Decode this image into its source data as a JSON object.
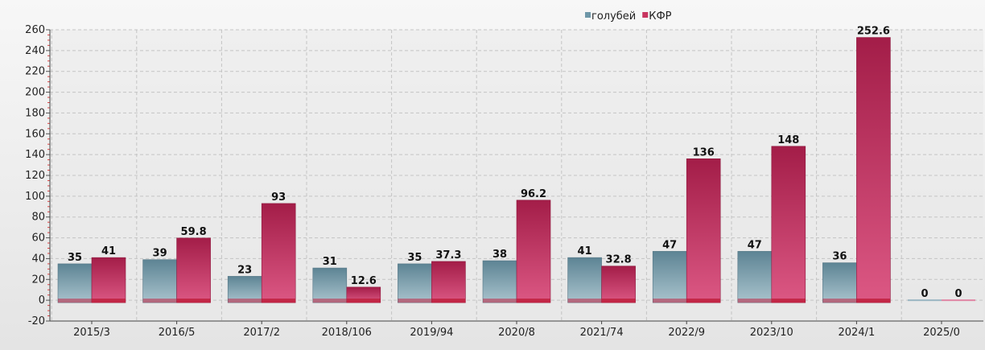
{
  "chart_data": {
    "type": "bar",
    "categories": [
      "2015/3",
      "2016/5",
      "2017/2",
      "2018/106",
      "2019/94",
      "2020/8",
      "2021/74",
      "2022/9",
      "2023/10",
      "2024/1",
      "2025/0"
    ],
    "series": [
      {
        "name": "голубей",
        "color": "#6e97a8",
        "values": [
          35,
          39,
          23,
          31,
          35,
          38,
          41,
          47,
          47,
          36,
          0
        ]
      },
      {
        "name": "КФР",
        "color": "#c8345f",
        "values": [
          41,
          59.8,
          93,
          12.6,
          37.3,
          96.2,
          32.8,
          136,
          148,
          252.6,
          0
        ]
      }
    ],
    "data_labels": [
      [
        "35",
        "39",
        "23",
        "31",
        "35",
        "38",
        "41",
        "47",
        "47",
        "36",
        "0"
      ],
      [
        "41",
        "59.8",
        "93",
        "12.6",
        "37.3",
        "96.2",
        "32.8",
        "136",
        "148",
        "252.6",
        "0"
      ]
    ],
    "ylim": [
      -20,
      260
    ],
    "yticks": [
      -20,
      0,
      20,
      40,
      60,
      80,
      100,
      120,
      140,
      160,
      180,
      200,
      220,
      240,
      260
    ],
    "ytick_labels": [
      "-20",
      "0",
      "20",
      "40",
      "60",
      "80",
      "100",
      "120",
      "140",
      "160",
      "180",
      "200",
      "220",
      "240",
      "260"
    ],
    "grid": true,
    "legend_position": "top-right",
    "title": "",
    "xlabel": "",
    "ylabel": ""
  }
}
